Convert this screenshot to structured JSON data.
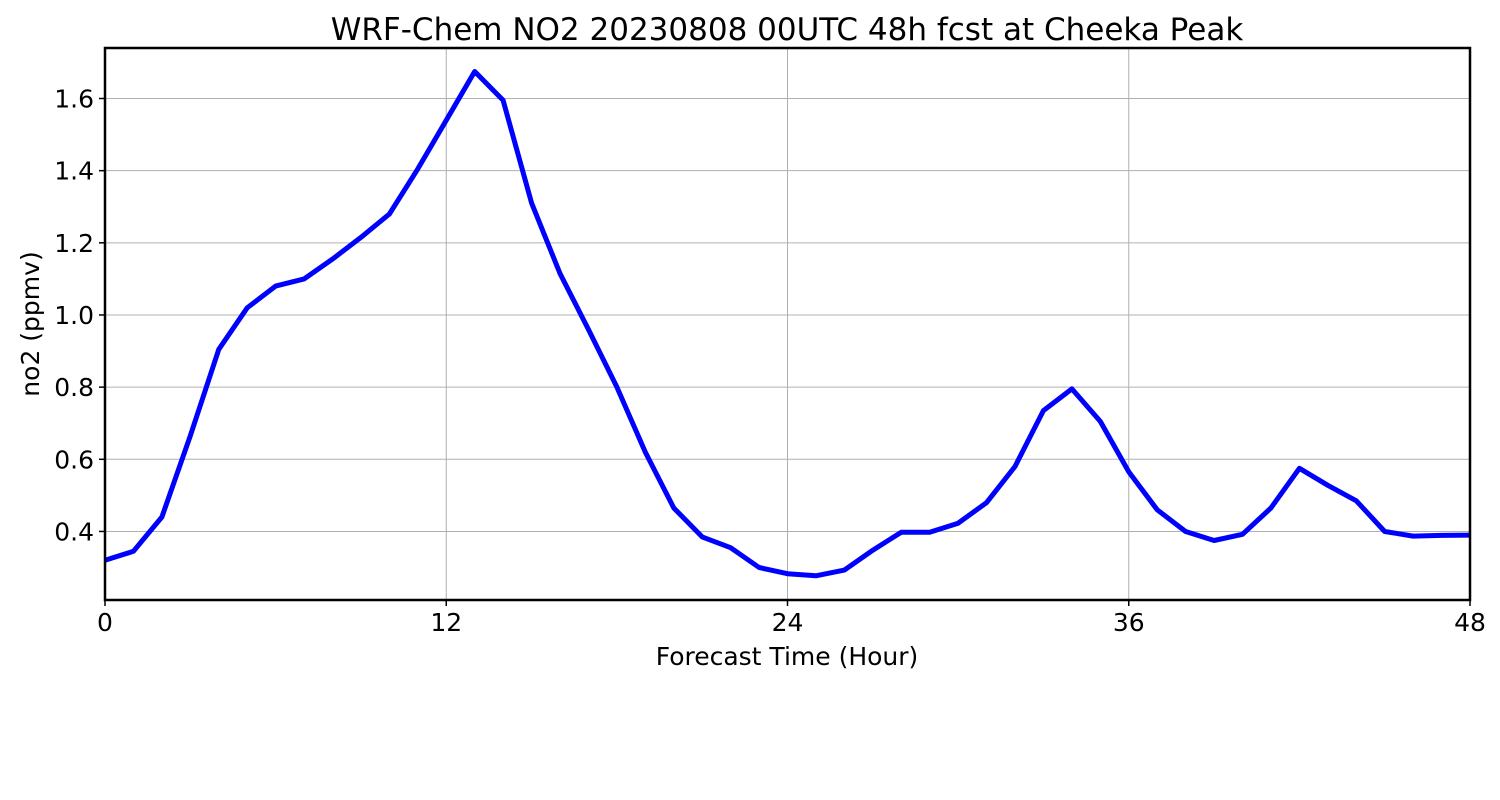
{
  "chart_data": {
    "type": "line",
    "title": "WRF-Chem NO2  20230808 00UTC 48h fcst at Cheeka Peak",
    "xlabel": "Forecast Time (Hour)",
    "ylabel": "no2  (ppmv)",
    "xlim": [
      0,
      48
    ],
    "ylim": [
      0.21,
      1.74
    ],
    "xticks": [
      0,
      12,
      24,
      36,
      48
    ],
    "xtick_labels": [
      "0",
      "12",
      "24",
      "36",
      "48"
    ],
    "yticks": [
      0.4,
      0.6,
      0.8,
      1.0,
      1.2,
      1.4,
      1.6
    ],
    "ytick_labels": [
      "0.4",
      "0.6",
      "0.8",
      "1.0",
      "1.2",
      "1.4",
      "1.6"
    ],
    "grid": true,
    "line_color": "#0000ff",
    "series": [
      {
        "x": [
          0,
          1,
          2,
          3,
          4,
          5,
          6,
          7,
          8,
          9,
          10,
          11,
          12,
          13,
          14,
          15,
          16,
          17,
          18,
          19,
          20,
          21,
          22,
          23,
          24,
          25,
          26,
          27,
          28,
          29,
          30,
          31,
          32,
          33,
          34,
          35,
          36,
          37,
          38,
          39,
          40,
          41,
          42,
          43,
          44,
          45,
          46,
          47,
          48
        ],
        "y": [
          0.32,
          0.345,
          0.44,
          0.665,
          0.905,
          1.02,
          1.08,
          1.1,
          1.155,
          1.215,
          1.28,
          1.405,
          1.54,
          1.675,
          1.595,
          1.31,
          1.115,
          0.96,
          0.8,
          0.62,
          0.465,
          0.385,
          0.355,
          0.3,
          0.283,
          0.277,
          0.293,
          0.348,
          0.398,
          0.398,
          0.423,
          0.48,
          0.58,
          0.735,
          0.795,
          0.705,
          0.565,
          0.46,
          0.4,
          0.375,
          0.392,
          0.465,
          0.575,
          0.528,
          0.485,
          0.4,
          0.387,
          0.389,
          0.39
        ]
      }
    ]
  }
}
